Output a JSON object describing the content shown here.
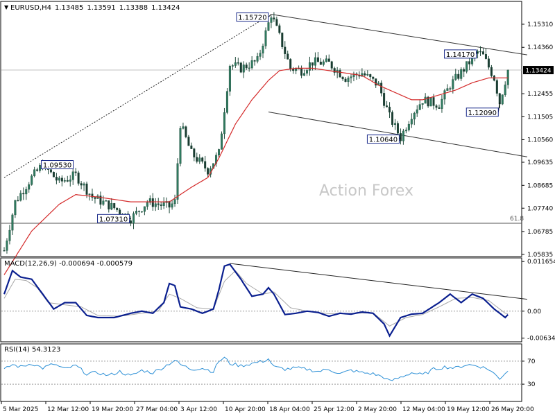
{
  "chart_data": [
    {
      "type": "candlestick",
      "header": {
        "symbol_label": "EURUSD,H4",
        "open": "1.13485",
        "high": "1.13591",
        "low": "1.13388",
        "close": "1.13424"
      },
      "watermark": "Action Forex",
      "price_axis": {
        "ylim": [
          1.0575,
          1.1625
        ],
        "ticks": [
          {
            "value": 1.1531,
            "label": "1.15310"
          },
          {
            "value": 1.1436,
            "label": "1.14360"
          },
          {
            "value": 1.134,
            "label": "1.13424"
          },
          {
            "value": 1.1245,
            "label": "1.12455"
          },
          {
            "value": 1.115,
            "label": "1.11505"
          },
          {
            "value": 1.1056,
            "label": "1.10560"
          },
          {
            "value": 1.0963,
            "label": "1.09635"
          },
          {
            "value": 1.0868,
            "label": "1.08685"
          },
          {
            "value": 1.0774,
            "label": "1.07740"
          },
          {
            "value": 1.0678,
            "label": "1.06785"
          },
          {
            "value": 1.0584,
            "label": "1.05835"
          }
        ],
        "current_price_label": "1.13424",
        "current_price": 1.13424
      },
      "x_axis": {
        "bars": 150,
        "labels": [
          {
            "bar": 0,
            "text": "5 Mar 2025"
          },
          {
            "bar": 16,
            "text": "12 Mar 12:00"
          },
          {
            "bar": 32,
            "text": "19 Mar 20:00"
          },
          {
            "bar": 48,
            "text": "27 Mar 04:00"
          },
          {
            "bar": 64,
            "text": "3 Apr 12:00"
          },
          {
            "bar": 80,
            "text": "10 Apr 20:00"
          },
          {
            "bar": 96,
            "text": "18 Apr 04:00"
          },
          {
            "bar": 112,
            "text": "25 Apr 12:00"
          },
          {
            "bar": 128,
            "text": "2 May 20:00"
          },
          {
            "bar": 144,
            "text": "12 May 04:00"
          },
          {
            "bar": 160,
            "text": "19 May 12:00"
          },
          {
            "bar": 176,
            "text": "26 May 20:00"
          }
        ]
      },
      "price_path": [
        [
          0,
          1.06
        ],
        [
          4,
          1.08
        ],
        [
          10,
          1.09
        ],
        [
          14,
          1.0953
        ],
        [
          20,
          1.088
        ],
        [
          26,
          1.091
        ],
        [
          32,
          1.082
        ],
        [
          40,
          1.0775
        ],
        [
          46,
          1.0731
        ],
        [
          52,
          1.08
        ],
        [
          60,
          1.078
        ],
        [
          62,
          1.08
        ],
        [
          64,
          1.112
        ],
        [
          68,
          1.1
        ],
        [
          74,
          1.093
        ],
        [
          78,
          1.1
        ],
        [
          82,
          1.1365
        ],
        [
          86,
          1.135
        ],
        [
          92,
          1.138
        ],
        [
          97,
          1.1572
        ],
        [
          100,
          1.148
        ],
        [
          104,
          1.135
        ],
        [
          108,
          1.134
        ],
        [
          112,
          1.1375
        ],
        [
          118,
          1.137
        ],
        [
          124,
          1.131
        ],
        [
          130,
          1.133
        ],
        [
          136,
          1.128
        ],
        [
          140,
          1.115
        ],
        [
          144,
          1.1064
        ],
        [
          148,
          1.116
        ],
        [
          152,
          1.122
        ],
        [
          158,
          1.12
        ],
        [
          162,
          1.128
        ],
        [
          168,
          1.136
        ],
        [
          172,
          1.1417
        ],
        [
          174,
          1.14
        ],
        [
          178,
          1.131
        ],
        [
          180,
          1.1209
        ],
        [
          183,
          1.1342
        ]
      ],
      "moving_average": {
        "color": "#d42a2a",
        "path": [
          [
            0,
            1.05
          ],
          [
            10,
            1.068
          ],
          [
            20,
            1.079
          ],
          [
            26,
            1.083
          ],
          [
            34,
            1.082
          ],
          [
            46,
            1.08
          ],
          [
            60,
            1.08
          ],
          [
            68,
            1.086
          ],
          [
            74,
            1.09
          ],
          [
            78,
            1.098
          ],
          [
            84,
            1.112
          ],
          [
            90,
            1.122
          ],
          [
            96,
            1.13
          ],
          [
            100,
            1.134
          ],
          [
            106,
            1.135
          ],
          [
            112,
            1.135
          ],
          [
            118,
            1.134
          ],
          [
            124,
            1.133
          ],
          [
            130,
            1.132
          ],
          [
            136,
            1.128
          ],
          [
            142,
            1.125
          ],
          [
            148,
            1.122
          ],
          [
            152,
            1.122
          ],
          [
            158,
            1.124
          ],
          [
            164,
            1.126
          ],
          [
            170,
            1.129
          ],
          [
            176,
            1.131
          ],
          [
            183,
            1.131
          ]
        ]
      },
      "annotations": [
        {
          "label": "1.15720",
          "bar": 97,
          "price": 1.1572,
          "label_side": "left"
        },
        {
          "label": "1.09530",
          "bar": 14,
          "price": 1.0953,
          "label_side": "right"
        },
        {
          "label": "1.07310",
          "bar": 46,
          "price": 1.0731,
          "label_side": "left"
        },
        {
          "label": "1.10640",
          "bar": 144,
          "price": 1.1064,
          "label_side": "left"
        },
        {
          "label": "1.14170",
          "bar": 172,
          "price": 1.1417,
          "label_side": "left"
        },
        {
          "label": "1.12090",
          "bar": 180,
          "price": 1.1209,
          "label_side": "left"
        }
      ],
      "channel": {
        "upper": {
          "from": [
            97,
            1.1572
          ],
          "to": [
            190,
            1.1405
          ]
        },
        "lower": {
          "from": [
            96,
            1.117
          ],
          "to": [
            190,
            1.0985
          ]
        },
        "dotted_trend": {
          "from": [
            0,
            1.09
          ],
          "to": [
            96,
            1.1565
          ]
        }
      },
      "fib_level": {
        "label": "61.8",
        "price": 1.0712
      },
      "grid": false
    },
    {
      "type": "line",
      "title": "MACD(12,26,9) -0.000694 -0.000579",
      "ylim": [
        -0.0072,
        0.0125
      ],
      "ticks": [
        {
          "value": 0.011654,
          "label": "0.011654"
        },
        {
          "value": 0.0,
          "label": "0.00"
        },
        {
          "value": -0.006345,
          "label": "-0.006345"
        }
      ],
      "series": [
        {
          "color": "#0a1f8f",
          "values_path": [
            [
              0,
              0.004
            ],
            [
              3,
              0.0095
            ],
            [
              6,
              0.008
            ],
            [
              10,
              0.0075
            ],
            [
              14,
              0.004
            ],
            [
              18,
              0.0005
            ],
            [
              22,
              0.002
            ],
            [
              26,
              0.002
            ],
            [
              30,
              -0.001
            ],
            [
              34,
              -0.0015
            ],
            [
              40,
              -0.0015
            ],
            [
              46,
              -0.0005
            ],
            [
              50,
              0.0
            ],
            [
              54,
              -0.0005
            ],
            [
              58,
              0.002
            ],
            [
              60,
              0.0065
            ],
            [
              62,
              0.006
            ],
            [
              64,
              0.001
            ],
            [
              68,
              0.0005
            ],
            [
              72,
              -0.0005
            ],
            [
              76,
              0.0005
            ],
            [
              78,
              0.005
            ],
            [
              80,
              0.0106
            ],
            [
              82,
              0.011
            ],
            [
              86,
              0.0075
            ],
            [
              90,
              0.0035
            ],
            [
              94,
              0.004
            ],
            [
              96,
              0.0055
            ],
            [
              98,
              0.004
            ],
            [
              102,
              -0.0008
            ],
            [
              106,
              -0.0005
            ],
            [
              110,
              0.0
            ],
            [
              114,
              -0.0003
            ],
            [
              118,
              -0.0012
            ],
            [
              122,
              -0.0005
            ],
            [
              126,
              -0.0007
            ],
            [
              130,
              -0.0002
            ],
            [
              134,
              -0.0005
            ],
            [
              138,
              -0.003
            ],
            [
              140,
              -0.0058
            ],
            [
              144,
              -0.0015
            ],
            [
              148,
              -0.0007
            ],
            [
              152,
              -0.0005
            ],
            [
              158,
              0.002
            ],
            [
              162,
              0.004
            ],
            [
              166,
              0.002
            ],
            [
              170,
              0.004
            ],
            [
              174,
              0.003
            ],
            [
              178,
              0.0005
            ],
            [
              182,
              -0.0015
            ],
            [
              183,
              -0.0008
            ]
          ]
        },
        {
          "color": "#a8a8a8",
          "values_path": [
            [
              0,
              0.003
            ],
            [
              4,
              0.0075
            ],
            [
              8,
              0.0072
            ],
            [
              12,
              0.0055
            ],
            [
              16,
              0.002
            ],
            [
              22,
              0.0015
            ],
            [
              28,
              0.001
            ],
            [
              34,
              -0.001
            ],
            [
              42,
              -0.0012
            ],
            [
              50,
              -0.0005
            ],
            [
              56,
              0.0
            ],
            [
              60,
              0.004
            ],
            [
              64,
              0.003
            ],
            [
              70,
              0.0008
            ],
            [
              76,
              0.0005
            ],
            [
              80,
              0.007
            ],
            [
              84,
              0.0095
            ],
            [
              88,
              0.0065
            ],
            [
              94,
              0.004
            ],
            [
              98,
              0.0045
            ],
            [
              104,
              0.0008
            ],
            [
              110,
              0.0
            ],
            [
              118,
              -0.0006
            ],
            [
              126,
              -0.0005
            ],
            [
              134,
              -0.0004
            ],
            [
              140,
              -0.0035
            ],
            [
              146,
              -0.0015
            ],
            [
              152,
              -0.0008
            ],
            [
              158,
              0.001
            ],
            [
              164,
              0.003
            ],
            [
              170,
              0.0032
            ],
            [
              176,
              0.0025
            ],
            [
              182,
              -0.0005
            ],
            [
              183,
              -0.0006
            ]
          ]
        }
      ],
      "trendline": {
        "from": [
          82,
          0.0112
        ],
        "to": [
          190,
          0.0028
        ]
      }
    },
    {
      "type": "line",
      "title": "RSI(14) 54.3123",
      "ylim": [
        0,
        100
      ],
      "ticks": [
        {
          "value": 70,
          "label": "70"
        },
        {
          "value": 30,
          "label": "30"
        }
      ],
      "series": [
        {
          "color": "#2b8fd6",
          "values_path": [
            [
              0,
              55
            ],
            [
              3,
              64
            ],
            [
              6,
              60
            ],
            [
              10,
              66
            ],
            [
              14,
              58
            ],
            [
              18,
              65
            ],
            [
              22,
              56
            ],
            [
              26,
              62
            ],
            [
              30,
              48
            ],
            [
              34,
              50
            ],
            [
              38,
              45
            ],
            [
              42,
              52
            ],
            [
              46,
              44
            ],
            [
              50,
              54
            ],
            [
              54,
              50
            ],
            [
              58,
              60
            ],
            [
              62,
              72
            ],
            [
              64,
              64
            ],
            [
              68,
              56
            ],
            [
              72,
              58
            ],
            [
              76,
              52
            ],
            [
              78,
              70
            ],
            [
              80,
              76
            ],
            [
              82,
              66
            ],
            [
              86,
              62
            ],
            [
              90,
              66
            ],
            [
              94,
              70
            ],
            [
              96,
              74
            ],
            [
              98,
              60
            ],
            [
              102,
              56
            ],
            [
              106,
              58
            ],
            [
              110,
              56
            ],
            [
              114,
              52
            ],
            [
              118,
              56
            ],
            [
              122,
              48
            ],
            [
              126,
              54
            ],
            [
              130,
              50
            ],
            [
              134,
              48
            ],
            [
              138,
              42
            ],
            [
              140,
              35
            ],
            [
              144,
              42
            ],
            [
              148,
              50
            ],
            [
              152,
              46
            ],
            [
              156,
              56
            ],
            [
              160,
              60
            ],
            [
              164,
              58
            ],
            [
              168,
              64
            ],
            [
              172,
              62
            ],
            [
              176,
              56
            ],
            [
              180,
              40
            ],
            [
              183,
              54
            ]
          ]
        }
      ]
    }
  ]
}
